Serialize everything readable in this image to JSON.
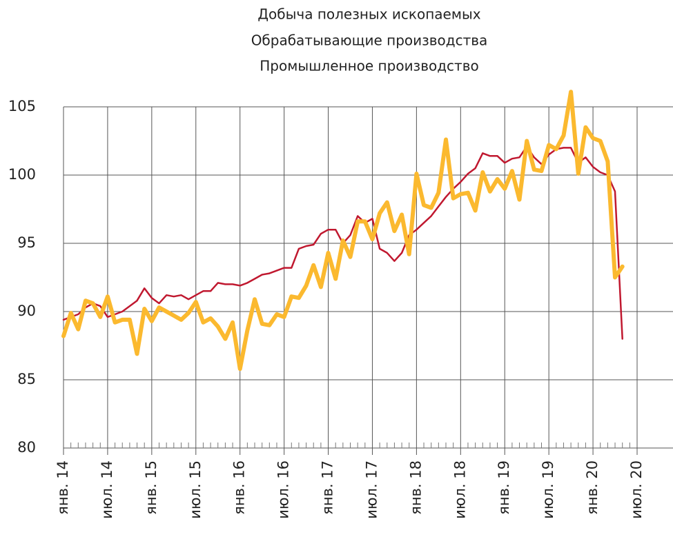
{
  "chart_data": {
    "type": "line",
    "title": [
      "Добыча полезных ископаемых",
      "Обрабатывающие производства",
      "Промышленное производство"
    ],
    "categories": [
      "янв. 14",
      null,
      null,
      null,
      null,
      null,
      "июл. 14",
      null,
      null,
      null,
      null,
      null,
      "янв. 15",
      null,
      null,
      null,
      null,
      null,
      "июл. 15",
      null,
      null,
      null,
      null,
      null,
      "янв. 16",
      null,
      null,
      null,
      null,
      null,
      "июл. 16",
      null,
      null,
      null,
      null,
      null,
      "янв. 17",
      null,
      null,
      null,
      null,
      null,
      "июл. 17",
      null,
      null,
      null,
      null,
      null,
      "янв. 18",
      null,
      null,
      null,
      null,
      null,
      "июл. 18",
      null,
      null,
      null,
      null,
      null,
      "янв. 19",
      null,
      null,
      null,
      null,
      null,
      "июл. 19",
      null,
      null,
      null,
      null,
      null,
      "янв. 20",
      null,
      null,
      null,
      null,
      null,
      "июл. 20"
    ],
    "series": [
      {
        "color": "#c0182f",
        "width": 2.5,
        "values": [
          89.4,
          89.6,
          89.8,
          90.3,
          90.6,
          90.4,
          89.6,
          89.8,
          90.0,
          90.4,
          90.8,
          91.7,
          91.0,
          90.6,
          91.2,
          91.1,
          91.2,
          90.9,
          91.2,
          91.5,
          91.5,
          92.1,
          92.0,
          92.0,
          91.9,
          92.1,
          92.4,
          92.7,
          92.8,
          93.0,
          93.2,
          93.2,
          94.6,
          94.8,
          94.9,
          95.7,
          96.0,
          96.0,
          95.0,
          95.6,
          97.0,
          96.5,
          96.8,
          94.6,
          94.3,
          93.7,
          94.3,
          95.6,
          96.0,
          96.5,
          97.0,
          97.7,
          98.4,
          99.0,
          99.5,
          100.1,
          100.5,
          101.6,
          101.4,
          101.4,
          100.9,
          101.2,
          101.3,
          102.1,
          101.3,
          100.8,
          101.5,
          101.9,
          102.0,
          102.0,
          100.9,
          101.3,
          100.6,
          100.2,
          100.0,
          98.8,
          88.0,
          null,
          null
        ]
      },
      {
        "color": "#fbb92f",
        "width": 6,
        "values": [
          88.2,
          89.9,
          88.7,
          90.8,
          90.6,
          89.6,
          91.1,
          89.2,
          89.4,
          89.4,
          86.9,
          90.2,
          89.3,
          90.3,
          90.0,
          89.7,
          89.4,
          89.9,
          90.7,
          89.2,
          89.5,
          88.9,
          88.0,
          89.2,
          85.8,
          88.6,
          90.9,
          89.1,
          89.0,
          89.8,
          89.6,
          91.1,
          91.0,
          91.9,
          93.4,
          91.8,
          94.3,
          92.4,
          95.2,
          94.0,
          96.6,
          96.6,
          95.3,
          97.2,
          98.0,
          95.9,
          97.1,
          94.2,
          100.1,
          97.8,
          97.6,
          98.7,
          102.6,
          98.3,
          98.6,
          98.7,
          97.4,
          100.2,
          98.8,
          99.7,
          99.0,
          100.3,
          98.2,
          102.5,
          100.4,
          100.3,
          102.2,
          101.9,
          102.9,
          106.1,
          100.1,
          103.5,
          102.7,
          102.5,
          101.0,
          92.5,
          93.3,
          null,
          null
        ]
      }
    ],
    "ylim": [
      80,
      105
    ],
    "yticks": [
      80,
      85,
      90,
      95,
      100,
      105
    ],
    "grid": true
  }
}
